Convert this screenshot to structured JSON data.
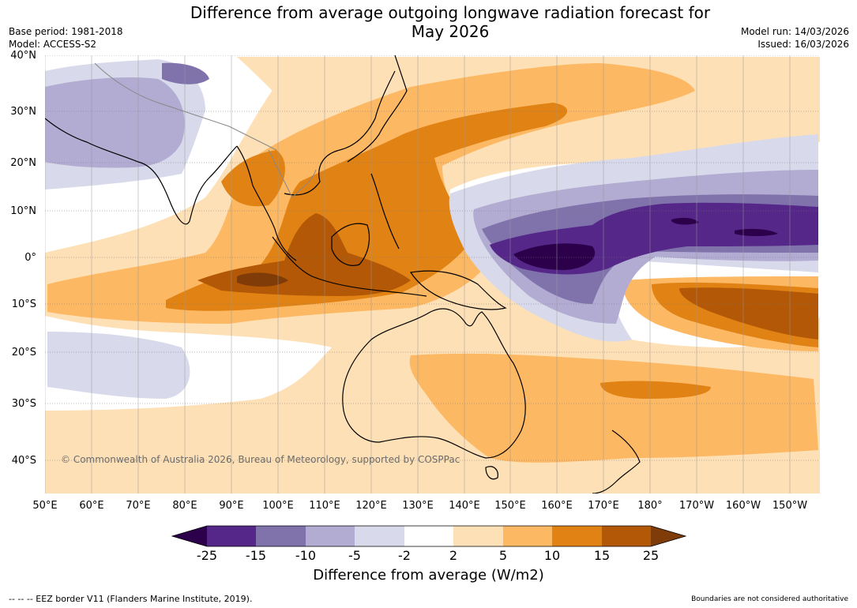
{
  "title_line1": "Difference from average outgoing longwave radiation forecast for",
  "title_line2": "May 2026",
  "meta_left": {
    "base_period": "Base period: 1981-2018",
    "model": "Model: ACCESS-S2"
  },
  "meta_right": {
    "model_run": "Model run: 14/03/2026",
    "issued": "Issued: 16/03/2026"
  },
  "lat_labels": [
    "40°N",
    "30°N",
    "20°N",
    "10°N",
    "0°",
    "10°S",
    "20°S",
    "30°S",
    "40°S"
  ],
  "lon_labels": [
    "50°E",
    "60°E",
    "70°E",
    "80°E",
    "90°E",
    "100°E",
    "110°E",
    "120°E",
    "130°E",
    "140°E",
    "150°E",
    "160°E",
    "170°E",
    "180°",
    "170°W",
    "160°W",
    "150°W"
  ],
  "copyright": "© Commonwealth of Australia 2026, Bureau of Meteorology, supported by COSPPac",
  "colorbar": {
    "ticks": [
      "-25",
      "-15",
      "-10",
      "-5",
      "-2",
      "2",
      "5",
      "10",
      "15",
      "25"
    ],
    "colors": [
      "#2d004b",
      "#542788",
      "#8073ac",
      "#b2abd2",
      "#d8daeb",
      "#ffffff",
      "#fee0b6",
      "#fdb863",
      "#e08214",
      "#b35806",
      "#7f3b08"
    ],
    "title": "Difference from average (W/m2)"
  },
  "footer_left": "--  --  -- EEZ border V11 (Flanders Marine Institute, 2019).",
  "footer_right": "Boundaries are not considered authoritative"
}
